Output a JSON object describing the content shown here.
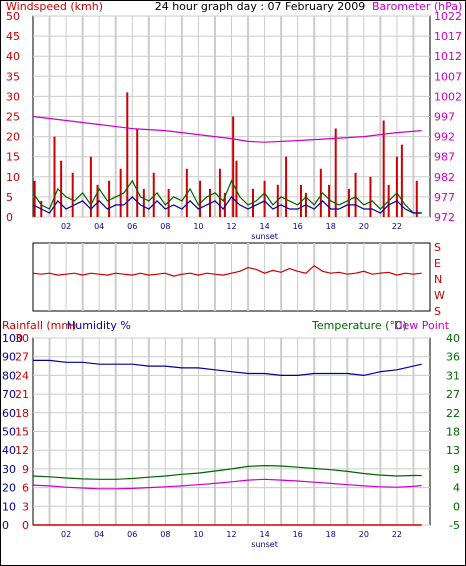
{
  "colors": {
    "wind": "#cc0000",
    "gust": "#cc0000",
    "wind_avg": "#006600",
    "wind_avg2": "#000099",
    "baro": "#cc00cc",
    "humidity": "#000099",
    "temp": "#006600",
    "dew": "#cc00cc",
    "rain": "#cc0000",
    "grid": "#cccccc",
    "night": "#e8e8e8"
  },
  "chart_data": [
    {
      "type": "line",
      "title": "24 hour graph day : 07 February 2009",
      "left_label": "Windspeed (kmh)",
      "right_label": "Barometer (hPa)",
      "x_ticks": [
        "02",
        "04",
        "06",
        "08",
        "10",
        "12",
        "14",
        "16",
        "18",
        "20",
        "22"
      ],
      "x_annotation": "sunset",
      "left_ticks": [
        "50",
        "45",
        "40",
        "35",
        "30",
        "25",
        "20",
        "15",
        "10",
        "5",
        "0"
      ],
      "right_ticks": [
        "1022",
        "1017",
        "1012",
        "1007",
        "1002",
        "997",
        "992",
        "987",
        "982",
        "977",
        "972"
      ],
      "ylim_left": [
        0,
        50
      ],
      "ylim_right": [
        972,
        1022
      ],
      "xlim": [
        0,
        24
      ],
      "barometer": {
        "x": [
          0,
          2,
          4,
          6,
          8,
          10,
          12,
          13,
          14,
          16,
          18,
          20,
          22,
          23.5
        ],
        "y": [
          997,
          996,
          995,
          994,
          993.5,
          992.5,
          991.5,
          990.8,
          990.6,
          991,
          991.5,
          992,
          993,
          993.5
        ]
      },
      "gust_peaks": {
        "x": [
          0.1,
          0.5,
          1.3,
          1.7,
          2.4,
          3.5,
          3.9,
          4.6,
          5.3,
          5.7,
          6.3,
          6.7,
          7.3,
          8.2,
          9.3,
          10.1,
          10.7,
          11.3,
          11.6,
          12.1,
          12.3,
          13.3,
          14.0,
          14.8,
          15.3,
          16.2,
          16.5,
          17.4,
          17.9,
          18.3,
          19.1,
          19.5,
          20.4,
          21.2,
          21.5,
          22.0,
          22.3,
          23.2
        ],
        "y": [
          9,
          4,
          20,
          14,
          11,
          15,
          8,
          9,
          12,
          31,
          22,
          7,
          11,
          7,
          12,
          9,
          7,
          12,
          6,
          25,
          14,
          7,
          9,
          8,
          15,
          8,
          6,
          12,
          8,
          22,
          7,
          11,
          10,
          24,
          8,
          15,
          18,
          9
        ]
      },
      "avg_wind": {
        "x": [
          0,
          0.5,
          1,
          1.5,
          2,
          2.5,
          3,
          3.5,
          4,
          4.5,
          5,
          5.5,
          6,
          6.5,
          7,
          7.5,
          8,
          8.5,
          9,
          9.5,
          10,
          10.5,
          11,
          11.5,
          12,
          12.5,
          13,
          13.5,
          14,
          14.5,
          15,
          15.5,
          16,
          16.5,
          17,
          17.5,
          18,
          18.5,
          19,
          19.5,
          20,
          20.5,
          21,
          21.5,
          22,
          22.5,
          23,
          23.5
        ],
        "y": [
          6,
          3,
          2,
          7,
          5,
          4,
          6,
          3,
          7,
          4,
          5,
          6,
          9,
          5,
          4,
          6,
          3,
          5,
          4,
          7,
          3,
          5,
          6,
          4,
          9,
          5,
          3,
          4,
          6,
          3,
          5,
          4,
          3,
          5,
          3,
          6,
          4,
          3,
          4,
          5,
          3,
          4,
          2,
          4,
          6,
          3,
          1,
          1
        ]
      },
      "avg_wind2": {
        "x": [
          0,
          0.5,
          1,
          1.5,
          2,
          2.5,
          3,
          3.5,
          4,
          4.5,
          5,
          5.5,
          6,
          6.5,
          7,
          7.5,
          8,
          8.5,
          9,
          9.5,
          10,
          10.5,
          11,
          11.5,
          12,
          12.5,
          13,
          13.5,
          14,
          14.5,
          15,
          15.5,
          16,
          16.5,
          17,
          17.5,
          18,
          18.5,
          19,
          19.5,
          20,
          20.5,
          21,
          21.5,
          22,
          22.5,
          23,
          23.5
        ],
        "y": [
          3,
          2,
          1,
          4,
          2,
          3,
          4,
          2,
          4,
          2,
          3,
          3,
          5,
          3,
          2,
          4,
          2,
          3,
          2,
          4,
          2,
          3,
          4,
          2,
          5,
          3,
          2,
          3,
          4,
          2,
          3,
          2,
          2,
          3,
          2,
          4,
          2,
          2,
          3,
          3,
          2,
          2,
          1,
          3,
          4,
          2,
          1,
          1
        ]
      }
    },
    {
      "type": "line",
      "title": "",
      "right_labels": [
        "S",
        "E",
        "N",
        "W",
        "S"
      ],
      "xlim": [
        0,
        24
      ],
      "ylim": [
        0,
        360
      ],
      "direction": {
        "x": [
          0,
          0.5,
          1,
          1.5,
          2,
          2.5,
          3,
          3.5,
          4,
          4.5,
          5,
          5.5,
          6,
          6.5,
          7,
          7.5,
          8,
          8.5,
          9,
          9.5,
          10,
          10.5,
          11,
          11.5,
          12,
          12.5,
          13,
          13.5,
          14,
          14.5,
          15,
          15.5,
          16,
          16.5,
          17,
          17.5,
          18,
          18.5,
          19,
          19.5,
          20,
          20.5,
          21,
          21.5,
          22,
          22.5,
          23,
          23.5
        ],
        "y": [
          200,
          195,
          200,
          190,
          195,
          200,
          190,
          200,
          195,
          190,
          200,
          195,
          190,
          200,
          190,
          195,
          200,
          185,
          195,
          200,
          190,
          200,
          195,
          190,
          200,
          210,
          230,
          220,
          200,
          215,
          205,
          225,
          210,
          200,
          240,
          210,
          200,
          205,
          195,
          200,
          210,
          195,
          200,
          205,
          190,
          200,
          195,
          200
        ]
      }
    },
    {
      "type": "line",
      "title": "",
      "left_label_rain": "Rainfall (mm)",
      "left_label_hum": "Humidity %",
      "right_label_temp": "Temperature (°C)",
      "right_label_dew": "Dew Point",
      "x_ticks": [
        "02",
        "04",
        "06",
        "08",
        "10",
        "12",
        "14",
        "16",
        "18",
        "20",
        "22"
      ],
      "x_annotation": "sunset",
      "rain_ticks": [
        "30",
        "27",
        "24",
        "21",
        "18",
        "15",
        "12",
        "9",
        "6",
        "3",
        "0"
      ],
      "humidity_ticks": [
        "100",
        "90",
        "80",
        "70",
        "60",
        "50",
        "40",
        "30",
        "20",
        "10",
        "0"
      ],
      "temp_ticks": [
        "40",
        "36",
        "31",
        "27",
        "22",
        "18",
        "13",
        "9",
        "4",
        "0",
        "-5"
      ],
      "xlim": [
        0,
        24
      ],
      "humidity_ylim": [
        0,
        100
      ],
      "temp_ylim": [
        -5,
        40
      ],
      "humidity": {
        "x": [
          0,
          1,
          2,
          3,
          4,
          5,
          6,
          7,
          8,
          9,
          10,
          11,
          12,
          13,
          14,
          15,
          16,
          17,
          18,
          19,
          20,
          21,
          22,
          23,
          23.5
        ],
        "y": [
          88,
          88,
          87,
          87,
          86,
          86,
          86,
          85,
          85,
          84,
          84,
          83,
          82,
          81,
          81,
          80,
          80,
          81,
          81,
          81,
          80,
          82,
          83,
          85,
          86
        ]
      },
      "temperature": {
        "x": [
          0,
          1,
          2,
          3,
          4,
          5,
          6,
          7,
          8,
          9,
          10,
          11,
          12,
          13,
          14,
          15,
          16,
          17,
          18,
          19,
          20,
          21,
          22,
          23,
          23.5
        ],
        "y": [
          6.8,
          6.6,
          6.3,
          6.1,
          6,
          6,
          6.2,
          6.5,
          6.8,
          7.2,
          7.5,
          8,
          8.5,
          9.1,
          9.3,
          9.2,
          8.9,
          8.6,
          8.3,
          7.9,
          7.4,
          7,
          6.8,
          6.9,
          6.9
        ]
      },
      "dewpoint": {
        "x": [
          0,
          1,
          2,
          3,
          4,
          5,
          6,
          7,
          8,
          9,
          10,
          11,
          12,
          13,
          14,
          15,
          16,
          17,
          18,
          19,
          20,
          21,
          22,
          23,
          23.5
        ],
        "y": [
          4.6,
          4.4,
          4.1,
          3.9,
          3.7,
          3.7,
          3.8,
          4,
          4.2,
          4.4,
          4.7,
          5,
          5.4,
          5.8,
          6,
          5.8,
          5.6,
          5.3,
          5,
          4.7,
          4.4,
          4.2,
          4.1,
          4.3,
          4.5
        ]
      },
      "rain": {
        "x": [
          0,
          23.5
        ],
        "y": [
          0,
          0
        ]
      }
    }
  ]
}
